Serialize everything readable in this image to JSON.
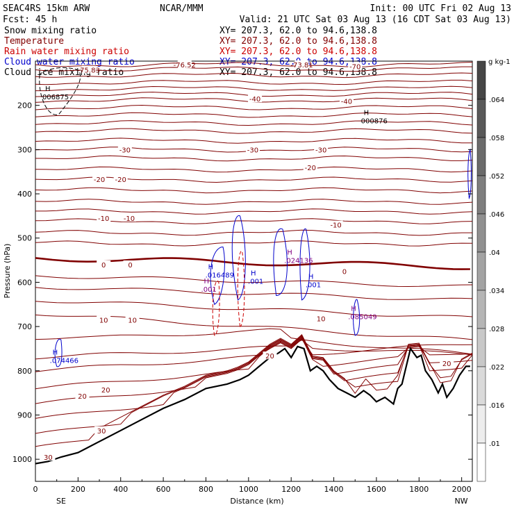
{
  "header": {
    "model": "SEAC4RS 15km ARW",
    "center": "NCAR/MMM",
    "init": "Init: 00 UTC Fri 02 Aug 13",
    "fcst": "Fcst:   45 h",
    "valid": "Valid: 21 UTC Sat 03 Aug 13 (16 CDT Sat 03 Aug 13)"
  },
  "legend_rows": [
    {
      "label": "Snow mixing ratio",
      "xy": "XY= 207.3, 62.0 to  94.6,138.8",
      "color": "#000000"
    },
    {
      "label": "Temperature",
      "xy": "XY= 207.3, 62.0 to  94.6,138.8",
      "color": "#800000"
    },
    {
      "label": "Rain water mixing ratio",
      "xy": "XY= 207.3, 62.0 to  94.6,138.8",
      "color": "#cc0000"
    },
    {
      "label": "Cloud water mixing ratio",
      "xy": "XY= 207.3, 62.0 to  94.6,138.8",
      "color": "#0000cc"
    },
    {
      "label": "Cloud ice mixing ratio",
      "xy": "XY= 207.3, 62.0 to  94.6,138.8",
      "color": "#000000"
    }
  ],
  "chart_data": {
    "type": "cross-section",
    "xlabel": "Distance (km)",
    "ylabel": "Pressure (hPa)",
    "xlim": [
      0,
      2050
    ],
    "ylim": [
      1050,
      100
    ],
    "x_ticks": [
      0,
      200,
      400,
      600,
      800,
      1000,
      1200,
      1400,
      1600,
      1800,
      2000
    ],
    "y_ticks": [
      200,
      300,
      400,
      500,
      600,
      700,
      800,
      900,
      1000
    ],
    "left_end_label": "SE",
    "right_end_label": "NW",
    "colorbar": {
      "unit": "g kg-1",
      "ticks": [
        ".064",
        ".058",
        ".052",
        ".046",
        ".04",
        ".034",
        ".028",
        ".022",
        ".016",
        ".01"
      ]
    },
    "temperature_labels": [
      {
        "text": "-76.52",
        "x": 700,
        "p": 108
      },
      {
        "text": "-73.81",
        "x": 1250,
        "p": 108
      },
      {
        "text": "-70",
        "x": 1500,
        "p": 112
      },
      {
        "text": "-75.83",
        "x": 250,
        "p": 120
      },
      {
        "text": "-40",
        "x": 1030,
        "p": 185
      },
      {
        "text": "-40",
        "x": 1460,
        "p": 190
      },
      {
        "text": "-30",
        "x": 420,
        "p": 300
      },
      {
        "text": "-30",
        "x": 1020,
        "p": 300
      },
      {
        "text": "-30",
        "x": 1340,
        "p": 300
      },
      {
        "text": "-20",
        "x": 300,
        "p": 367
      },
      {
        "text": "-20",
        "x": 400,
        "p": 367
      },
      {
        "text": "-20",
        "x": 1290,
        "p": 340
      },
      {
        "text": "-10",
        "x": 320,
        "p": 455
      },
      {
        "text": "-10",
        "x": 440,
        "p": 455
      },
      {
        "text": "-10",
        "x": 1410,
        "p": 470
      },
      {
        "text": "0",
        "x": 320,
        "p": 560
      },
      {
        "text": "0",
        "x": 445,
        "p": 560
      },
      {
        "text": "0",
        "x": 1450,
        "p": 575
      },
      {
        "text": "10",
        "x": 320,
        "p": 685
      },
      {
        "text": "10",
        "x": 455,
        "p": 685
      },
      {
        "text": "10",
        "x": 1340,
        "p": 682
      },
      {
        "text": "20",
        "x": 1100,
        "p": 766
      },
      {
        "text": "20",
        "x": 1930,
        "p": 783
      },
      {
        "text": "20",
        "x": 220,
        "p": 857
      },
      {
        "text": "20",
        "x": 330,
        "p": 843
      },
      {
        "text": "30",
        "x": 310,
        "p": 935
      },
      {
        "text": "30",
        "x": 60,
        "p": 995
      }
    ],
    "max_labels": [
      {
        "text": "006875",
        "x": 65,
        "p": 180,
        "color": "#000000"
      },
      {
        "text": "000876",
        "x": 1560,
        "p": 234,
        "color": "#000000"
      },
      {
        "text": ".016489",
        "x": 830,
        "p": 583,
        "color": "#0000cc"
      },
      {
        "text": ".001",
        "x": 810,
        "p": 615,
        "color": "#800080"
      },
      {
        "text": ".024136",
        "x": 1200,
        "p": 550,
        "color": "#800080"
      },
      {
        "text": ".001",
        "x": 1030,
        "p": 597,
        "color": "#0000cc"
      },
      {
        "text": ".001",
        "x": 1300,
        "p": 605,
        "color": "#0000cc"
      },
      {
        "text": ".085049",
        "x": 1500,
        "p": 677,
        "color": "#800080"
      },
      {
        "text": ".074466",
        "x": 100,
        "p": 776,
        "color": "#0000cc"
      }
    ],
    "terrain": [
      [
        0,
        1010
      ],
      [
        60,
        1005
      ],
      [
        120,
        995
      ],
      [
        200,
        985
      ],
      [
        300,
        960
      ],
      [
        400,
        935
      ],
      [
        500,
        910
      ],
      [
        600,
        885
      ],
      [
        700,
        865
      ],
      [
        800,
        840
      ],
      [
        900,
        830
      ],
      [
        960,
        820
      ],
      [
        1000,
        810
      ],
      [
        1050,
        790
      ],
      [
        1100,
        770
      ],
      [
        1140,
        760
      ],
      [
        1170,
        750
      ],
      [
        1200,
        770
      ],
      [
        1230,
        745
      ],
      [
        1260,
        750
      ],
      [
        1290,
        800
      ],
      [
        1320,
        790
      ],
      [
        1350,
        800
      ],
      [
        1380,
        820
      ],
      [
        1420,
        840
      ],
      [
        1460,
        850
      ],
      [
        1500,
        860
      ],
      [
        1540,
        845
      ],
      [
        1570,
        855
      ],
      [
        1600,
        870
      ],
      [
        1640,
        860
      ],
      [
        1680,
        875
      ],
      [
        1700,
        840
      ],
      [
        1720,
        830
      ],
      [
        1760,
        750
      ],
      [
        1790,
        770
      ],
      [
        1810,
        765
      ],
      [
        1830,
        800
      ],
      [
        1860,
        820
      ],
      [
        1890,
        850
      ],
      [
        1910,
        830
      ],
      [
        1930,
        860
      ],
      [
        1960,
        840
      ],
      [
        1990,
        810
      ],
      [
        2020,
        790
      ],
      [
        2040,
        790
      ]
    ]
  }
}
